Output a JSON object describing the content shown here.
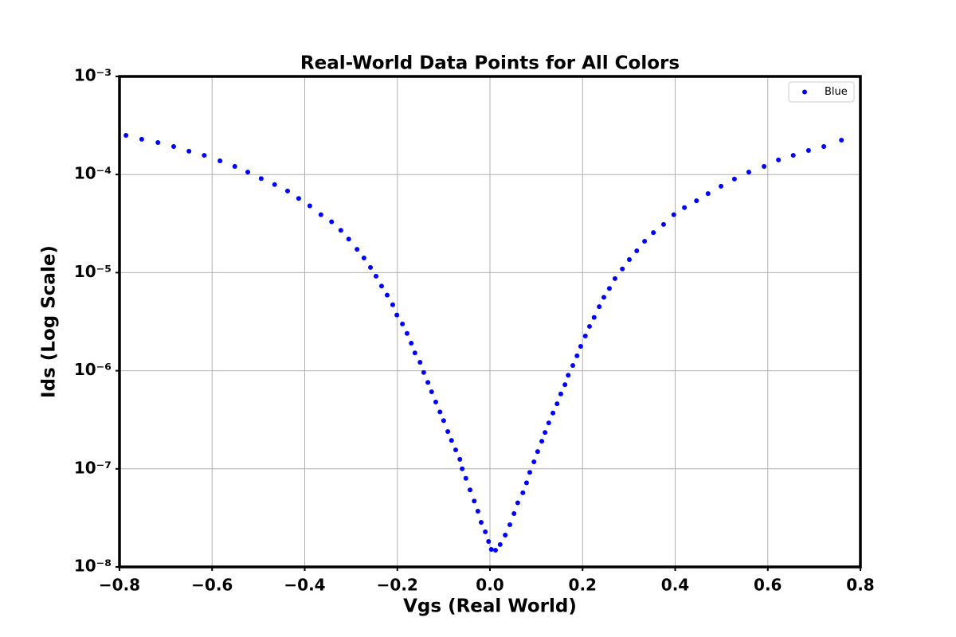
{
  "chart_data": {
    "type": "scatter",
    "title": "Real-World Data Points for All Colors",
    "xlabel": "Vgs (Real World)",
    "ylabel": "Ids (Log Scale)",
    "x": [
      -0.786,
      -0.752,
      -0.717,
      -0.683,
      -0.65,
      -0.617,
      -0.583,
      -0.551,
      -0.523,
      -0.494,
      -0.465,
      -0.437,
      -0.413,
      -0.389,
      -0.365,
      -0.342,
      -0.322,
      -0.305,
      -0.287,
      -0.272,
      -0.258,
      -0.246,
      -0.234,
      -0.222,
      -0.21,
      -0.201,
      -0.189,
      -0.179,
      -0.17,
      -0.162,
      -0.151,
      -0.143,
      -0.134,
      -0.126,
      -0.117,
      -0.108,
      -0.1,
      -0.091,
      -0.083,
      -0.074,
      -0.065,
      -0.06,
      -0.052,
      -0.043,
      -0.034,
      -0.026,
      -0.019,
      -0.01,
      -0.003,
      0.003,
      0.012,
      0.022,
      0.033,
      0.043,
      0.052,
      0.06,
      0.071,
      0.079,
      0.086,
      0.095,
      0.103,
      0.112,
      0.119,
      0.127,
      0.136,
      0.145,
      0.153,
      0.162,
      0.169,
      0.179,
      0.188,
      0.196,
      0.206,
      0.215,
      0.225,
      0.236,
      0.246,
      0.258,
      0.27,
      0.286,
      0.301,
      0.317,
      0.334,
      0.353,
      0.375,
      0.397,
      0.42,
      0.446,
      0.471,
      0.499,
      0.528,
      0.559,
      0.592,
      0.623,
      0.655,
      0.688,
      0.721,
      0.759
    ],
    "series": [
      {
        "name": "Blue",
        "color": "#0000ff",
        "values": [
          0.000251,
          0.000229,
          0.000212,
          0.000193,
          0.000173,
          0.000157,
          0.000138,
          0.000121,
          0.000106,
          9.1e-05,
          7.9e-05,
          6.8e-05,
          5.7e-05,
          4.8e-05,
          3.9e-05,
          3.3e-05,
          2.7e-05,
          2.2e-05,
          1.73e-05,
          1.41e-05,
          1.13e-05,
          9.2e-06,
          7.3e-06,
          5.9e-06,
          4.7e-06,
          3.7e-06,
          3e-06,
          2.4e-06,
          1.91e-06,
          1.52e-06,
          1.22e-06,
          9.6e-07,
          7.6e-07,
          6.1e-07,
          4.8e-07,
          3.8e-07,
          3.1e-07,
          2.4e-07,
          1.95e-07,
          1.56e-07,
          1.25e-07,
          1e-07,
          8e-08,
          6.1e-08,
          4.7e-08,
          3.7e-08,
          2.85e-08,
          2.28e-08,
          1.82e-08,
          1.51e-08,
          1.48e-08,
          1.69e-08,
          2.11e-08,
          2.69e-08,
          3.5e-08,
          4.5e-08,
          5.7e-08,
          7.2e-08,
          9.2e-08,
          1.18e-07,
          1.5e-07,
          1.91e-07,
          2.35e-07,
          2.94e-07,
          3.7e-07,
          4.6e-07,
          5.8e-07,
          7.2e-07,
          9e-07,
          1.13e-06,
          1.42e-06,
          1.77e-06,
          2.26e-06,
          2.83e-06,
          3.5e-06,
          4.5e-06,
          5.6e-06,
          6.9e-06,
          8.7e-06,
          1.09e-05,
          1.36e-05,
          1.67e-05,
          2.09e-05,
          2.56e-05,
          3.1e-05,
          3.9e-05,
          4.6e-05,
          5.4e-05,
          6.4e-05,
          7.6e-05,
          9e-05,
          0.000106,
          0.000121,
          0.000141,
          0.000157,
          0.000176,
          0.000193,
          0.000224
        ]
      }
    ],
    "xlim": [
      -0.8,
      0.8
    ],
    "xticks": [
      {
        "value": -0.8,
        "label": "−0.8"
      },
      {
        "value": -0.6,
        "label": "−0.6"
      },
      {
        "value": -0.4,
        "label": "−0.4"
      },
      {
        "value": -0.2,
        "label": "−0.2"
      },
      {
        "value": 0,
        "label": "0.0"
      },
      0.2,
      0.4,
      0.6,
      0.8
    ],
    "ylim": [
      1e-08,
      0.001
    ],
    "yticks": [
      {
        "value": 1e-08,
        "label": "10⁻⁸"
      },
      {
        "value": 1e-07,
        "label": "10⁻⁷"
      },
      {
        "value": 1e-06,
        "label": "10⁻⁶"
      },
      {
        "value": 1e-05,
        "label": "10⁻⁵"
      },
      {
        "value": 0.0001,
        "label": "10⁻⁴"
      },
      {
        "value": 0.001,
        "label": "10⁻³"
      }
    ],
    "yscale": "log",
    "grid": true,
    "legend": "upper right"
  }
}
